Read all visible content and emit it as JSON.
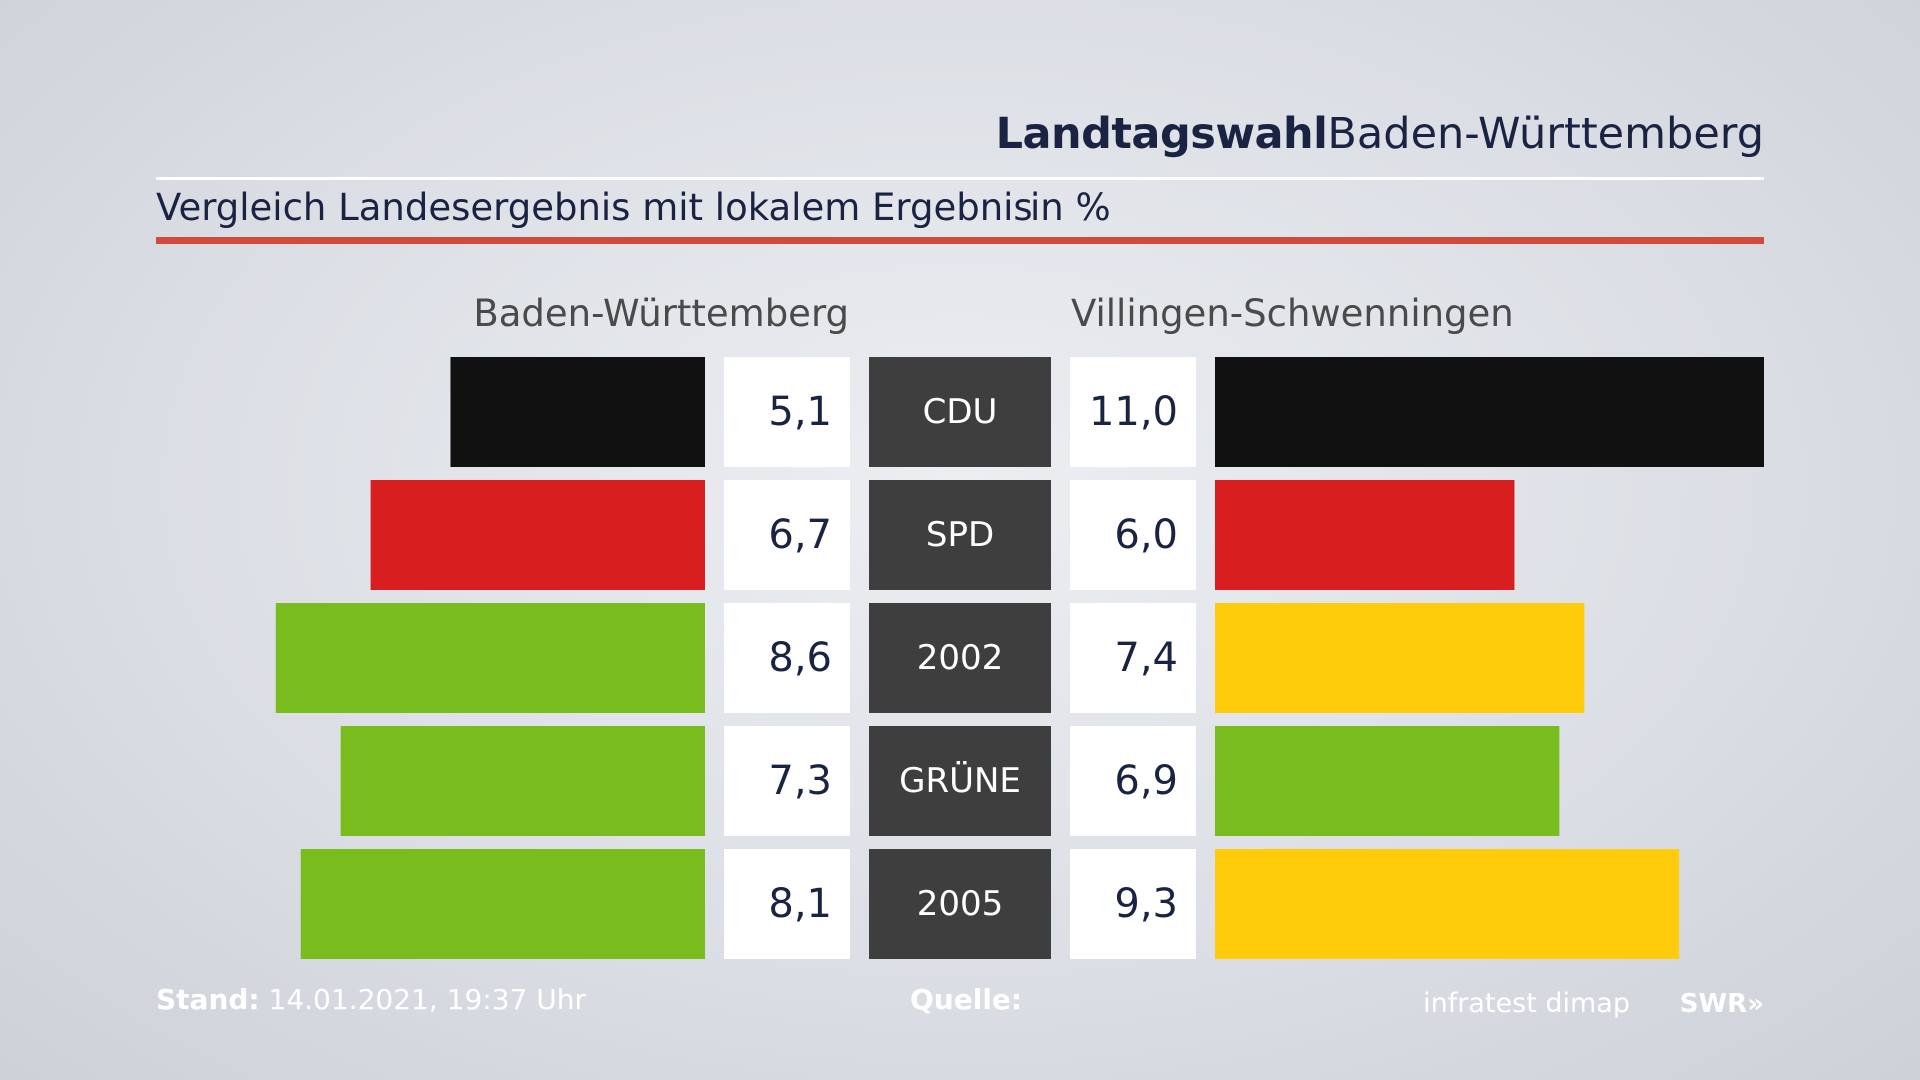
{
  "header": {
    "title_bold": "Landtagswahl",
    "title_regular": "Baden-Württemberg",
    "subtitle": "Vergleich Landesergebnis mit lokalem Ergebnis",
    "unit": "in %"
  },
  "colors": {
    "accent": "#d14a3b",
    "title_text": "#1a2342",
    "label_box": "#3e3e3e",
    "value_box": "#ffffff"
  },
  "chart_data": {
    "type": "bar",
    "orientation": "horizontal-butterfly",
    "categories": [
      "CDU",
      "SPD",
      "2002",
      "GRÜNE",
      "2005"
    ],
    "series": [
      {
        "name": "Baden-Württemberg",
        "values": [
          5.1,
          6.7,
          8.6,
          7.3,
          8.1
        ],
        "labels": [
          "5,1",
          "6,7",
          "8,6",
          "7,3",
          "8,1"
        ],
        "colors": [
          "#111111",
          "#d81e1e",
          "#79bc1e",
          "#79bc1e",
          "#79bc1e"
        ]
      },
      {
        "name": "Villingen-Schwenningen",
        "values": [
          11.0,
          6.0,
          7.4,
          6.9,
          9.3
        ],
        "labels": [
          "11,0",
          "6,0",
          "7,4",
          "6,9",
          "9,3"
        ],
        "colors": [
          "#111111",
          "#d81e1e",
          "#ffcc0b",
          "#79bc1e",
          "#ffcc0b"
        ]
      }
    ],
    "xlim": [
      0,
      11
    ]
  },
  "footer": {
    "stand_label": "Stand:",
    "stand_value": "14.01.2021, 19:37 Uhr",
    "quelle_label": "Quelle:",
    "source": "infratest dimap",
    "logo": "SWR»"
  }
}
